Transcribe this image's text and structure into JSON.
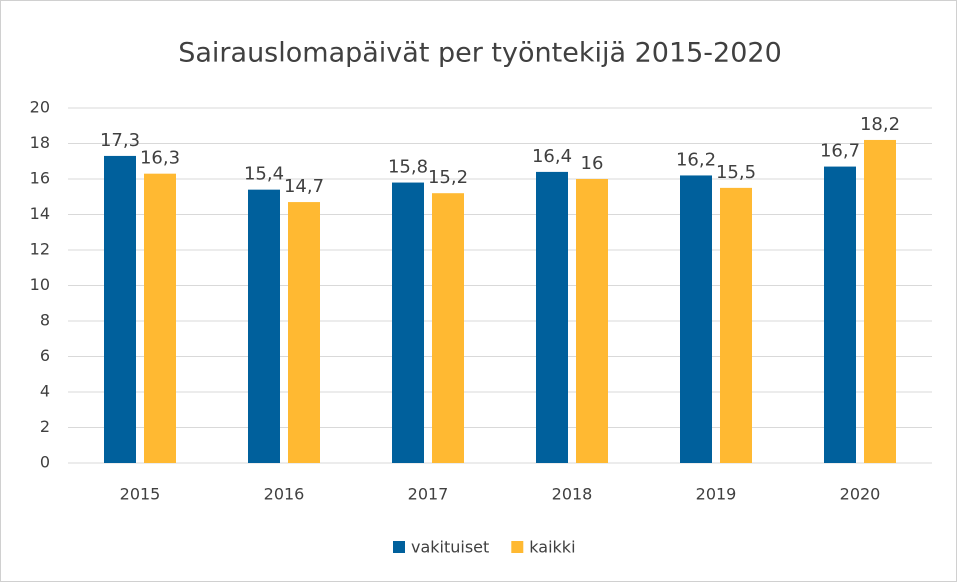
{
  "chart_data": {
    "type": "bar",
    "title": "Sairauslomapäivät per työntekijä 2015-2020",
    "categories": [
      "2015",
      "2016",
      "2017",
      "2018",
      "2019",
      "2020"
    ],
    "series": [
      {
        "name": "vakituiset",
        "color": "#00609c",
        "values": [
          17.3,
          15.4,
          15.8,
          16.4,
          16.2,
          16.7
        ],
        "value_labels": [
          "17,3",
          "15,4",
          "15,8",
          "16,4",
          "16,2",
          "16,7"
        ]
      },
      {
        "name": "kaikki",
        "color": "#ffb932",
        "values": [
          16.3,
          14.7,
          15.2,
          16,
          15.5,
          18.2
        ],
        "value_labels": [
          "16,3",
          "14,7",
          "15,2",
          "16",
          "15,5",
          "18,2"
        ]
      }
    ],
    "ylim": [
      0,
      20
    ],
    "yticks": [
      0,
      2,
      4,
      6,
      8,
      10,
      12,
      14,
      16,
      18,
      20
    ],
    "grid": true,
    "legend": "bottom"
  }
}
